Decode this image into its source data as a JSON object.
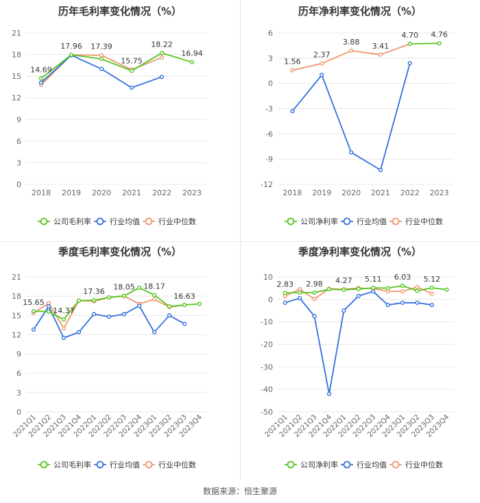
{
  "colors": {
    "company": "#52c41a",
    "industry_avg": "#2f6fdc",
    "industry_median": "#f0956a",
    "grid": "#e8e8e8",
    "axis_text": "#666666",
    "label_text": "#333333"
  },
  "footer": {
    "source": "数据来源：恒生聚源"
  },
  "chart_data": [
    {
      "type": "line",
      "title": "历年毛利率变化情况（%）",
      "categories": [
        "2018",
        "2019",
        "2020",
        "2021",
        "2022",
        "2023"
      ],
      "ylim": [
        0,
        21
      ],
      "yticks": [
        0,
        3,
        6,
        9,
        12,
        15,
        18,
        21
      ],
      "ytick_labels": [
        "0",
        "3",
        "6",
        "9",
        "12",
        "15",
        "18",
        "21"
      ],
      "grid": true,
      "legend_position": "bottom",
      "series": [
        {
          "name": "公司毛利率",
          "color_key": "company",
          "values": [
            14.69,
            17.96,
            17.39,
            15.75,
            18.22,
            16.94
          ]
        },
        {
          "name": "行业均值",
          "color_key": "industry_avg",
          "values": [
            14.1,
            17.9,
            16.0,
            13.4,
            14.9,
            null
          ]
        },
        {
          "name": "行业中位数",
          "color_key": "industry_median",
          "values": [
            13.8,
            17.95,
            17.9,
            15.9,
            17.6,
            null
          ]
        }
      ],
      "point_labels": [
        {
          "index": 0,
          "text": "14.69"
        },
        {
          "index": 1,
          "text": "17.96"
        },
        {
          "index": 2,
          "text": "17.39"
        },
        {
          "index": 3,
          "text": "15.75"
        },
        {
          "index": 4,
          "text": "18.22"
        },
        {
          "index": 5,
          "text": "16.94"
        }
      ],
      "rotate_x_labels": false
    },
    {
      "type": "line",
      "title": "历年净利率变化情况（%）",
      "categories": [
        "2018",
        "2019",
        "2020",
        "2021",
        "2022",
        "2023"
      ],
      "ylim": [
        -12,
        6
      ],
      "yticks": [
        -12,
        -9,
        -6,
        -3,
        0,
        3,
        6
      ],
      "ytick_labels": [
        "-12",
        "-9",
        "-6",
        "-3",
        "0",
        "3",
        "6"
      ],
      "grid": true,
      "legend_position": "bottom",
      "series": [
        {
          "name": "公司净利率",
          "color_key": "company",
          "values": [
            null,
            null,
            null,
            null,
            4.7,
            4.76
          ]
        },
        {
          "name": "行业均值",
          "color_key": "industry_avg",
          "values": [
            -3.3,
            1.0,
            -8.2,
            -10.3,
            2.4,
            null
          ]
        },
        {
          "name": "行业中位数",
          "color_key": "industry_median",
          "values": [
            1.56,
            2.37,
            3.88,
            3.41,
            4.7,
            null
          ]
        }
      ],
      "point_labels": [
        {
          "index": 0,
          "text": "1.56"
        },
        {
          "index": 1,
          "text": "2.37"
        },
        {
          "index": 2,
          "text": "3.88"
        },
        {
          "index": 3,
          "text": "3.41"
        },
        {
          "index": 4,
          "text": "4.70"
        },
        {
          "index": 5,
          "text": "4.76"
        }
      ],
      "rotate_x_labels": false
    },
    {
      "type": "line",
      "title": "季度毛利率变化情况（%）",
      "categories": [
        "2021Q1",
        "2021Q2",
        "2021Q3",
        "2021Q4",
        "2022Q1",
        "2022Q2",
        "2022Q3",
        "2022Q4",
        "2023Q1",
        "2023Q2",
        "2023Q3",
        "2023Q4"
      ],
      "ylim": [
        0,
        21
      ],
      "yticks": [
        0,
        3,
        6,
        9,
        12,
        15,
        18,
        21
      ],
      "ytick_labels": [
        "0",
        "3",
        "6",
        "9",
        "12",
        "15",
        "18",
        "21"
      ],
      "grid": true,
      "legend_position": "bottom",
      "series": [
        {
          "name": "公司毛利率",
          "color_key": "company",
          "values": [
            15.65,
            15.6,
            14.37,
            17.3,
            17.36,
            17.8,
            18.05,
            19.3,
            18.17,
            16.4,
            16.63,
            16.8
          ]
        },
        {
          "name": "行业均值",
          "color_key": "industry_avg",
          "values": [
            12.8,
            16.4,
            11.5,
            12.4,
            15.2,
            14.8,
            15.2,
            16.5,
            12.4,
            15.0,
            13.7,
            null
          ]
        },
        {
          "name": "行业中位数",
          "color_key": "industry_median",
          "values": [
            15.4,
            16.9,
            13.0,
            17.3,
            17.2,
            17.8,
            18.0,
            16.8,
            17.5,
            16.3,
            16.63,
            null
          ]
        }
      ],
      "point_labels": [
        {
          "index": 0,
          "text": "15.65"
        },
        {
          "index": 2,
          "text": "14.37"
        },
        {
          "index": 4,
          "text": "17.36"
        },
        {
          "index": 6,
          "text": "18.05"
        },
        {
          "index": 8,
          "text": "18.17"
        },
        {
          "index": 10,
          "text": "16.63"
        }
      ],
      "rotate_x_labels": true
    },
    {
      "type": "line",
      "title": "季度净利率变化情况（%）",
      "categories": [
        "2021Q1",
        "2021Q2",
        "2021Q3",
        "2021Q4",
        "2022Q1",
        "2022Q2",
        "2022Q3",
        "2022Q4",
        "2023Q1",
        "2023Q2",
        "2023Q3",
        "2023Q4"
      ],
      "ylim": [
        -50,
        10
      ],
      "yticks": [
        -50,
        -40,
        -30,
        -20,
        -10,
        0,
        10
      ],
      "ytick_labels": [
        "-50",
        "-40",
        "-30",
        "-20",
        "-10",
        "0",
        "10"
      ],
      "grid": true,
      "legend_position": "bottom",
      "series": [
        {
          "name": "公司净利率",
          "color_key": "company",
          "values": [
            2.83,
            3.0,
            2.98,
            4.5,
            4.27,
            4.6,
            5.11,
            5.0,
            6.03,
            3.8,
            5.12,
            4.3
          ]
        },
        {
          "name": "行业均值",
          "color_key": "industry_avg",
          "values": [
            -1.5,
            0.5,
            -7.5,
            -42.0,
            -5.0,
            1.5,
            3.5,
            -2.5,
            -1.5,
            -1.5,
            -2.5,
            null
          ]
        },
        {
          "name": "行业中位数",
          "color_key": "industry_median",
          "values": [
            1.5,
            4.5,
            0.2,
            4.7,
            4.5,
            5.0,
            4.8,
            3.6,
            3.5,
            5.5,
            2.5,
            null
          ]
        }
      ],
      "point_labels": [
        {
          "index": 0,
          "text": "2.83"
        },
        {
          "index": 2,
          "text": "2.98"
        },
        {
          "index": 4,
          "text": "4.27"
        },
        {
          "index": 6,
          "text": "5.11"
        },
        {
          "index": 8,
          "text": "6.03"
        },
        {
          "index": 10,
          "text": "5.12"
        }
      ],
      "rotate_x_labels": true
    }
  ]
}
